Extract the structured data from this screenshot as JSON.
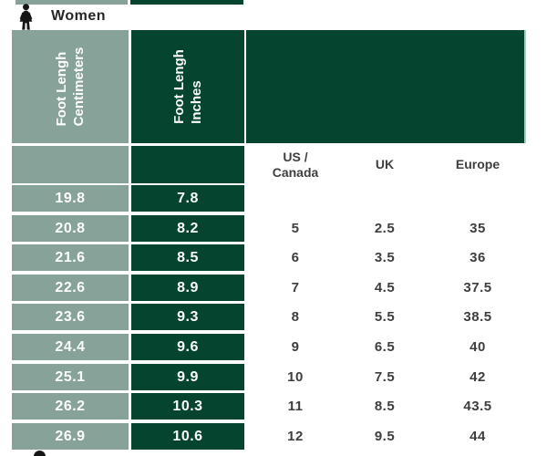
{
  "colors": {
    "sage": "#87A298",
    "dark-green": "#05452F",
    "num-text": "#3E3E3E",
    "title-text": "#262626",
    "edge-light": "#AECABD",
    "white-text": "#FDFDFD",
    "icon-black": "#161616"
  },
  "header": {
    "section_title": "Women",
    "icon": "woman-pictogram"
  },
  "table": {
    "column_headers": {
      "cm_line1": "Foot Lengh",
      "cm_line2": "Centimeters",
      "in_line1": "Foot Lengh",
      "in_line2": "Inches",
      "us_canada": "US /\nCanada",
      "uk": "UK",
      "europe": "Europe"
    }
  },
  "chart_data": {
    "type": "table",
    "title": "Women",
    "columns": [
      "Foot Lengh Centimeters",
      "Foot Lengh Inches",
      "US / Canada",
      "UK",
      "Europe"
    ],
    "rows": [
      [
        "19.8",
        "7.8",
        "",
        "",
        ""
      ],
      [
        "20.8",
        "8.2",
        "5",
        "2.5",
        "35"
      ],
      [
        "21.6",
        "8.5",
        "6",
        "3.5",
        "36"
      ],
      [
        "22.6",
        "8.9",
        "7",
        "4.5",
        "37.5"
      ],
      [
        "23.6",
        "9.3",
        "8",
        "5.5",
        "38.5"
      ],
      [
        "24.4",
        "9.6",
        "9",
        "6.5",
        "40"
      ],
      [
        "25.1",
        "9.9",
        "10",
        "7.5",
        "42"
      ],
      [
        "26.2",
        "10.3",
        "11",
        "8.5",
        "43.5"
      ],
      [
        "26.9",
        "10.6",
        "12",
        "9.5",
        "44"
      ]
    ]
  }
}
